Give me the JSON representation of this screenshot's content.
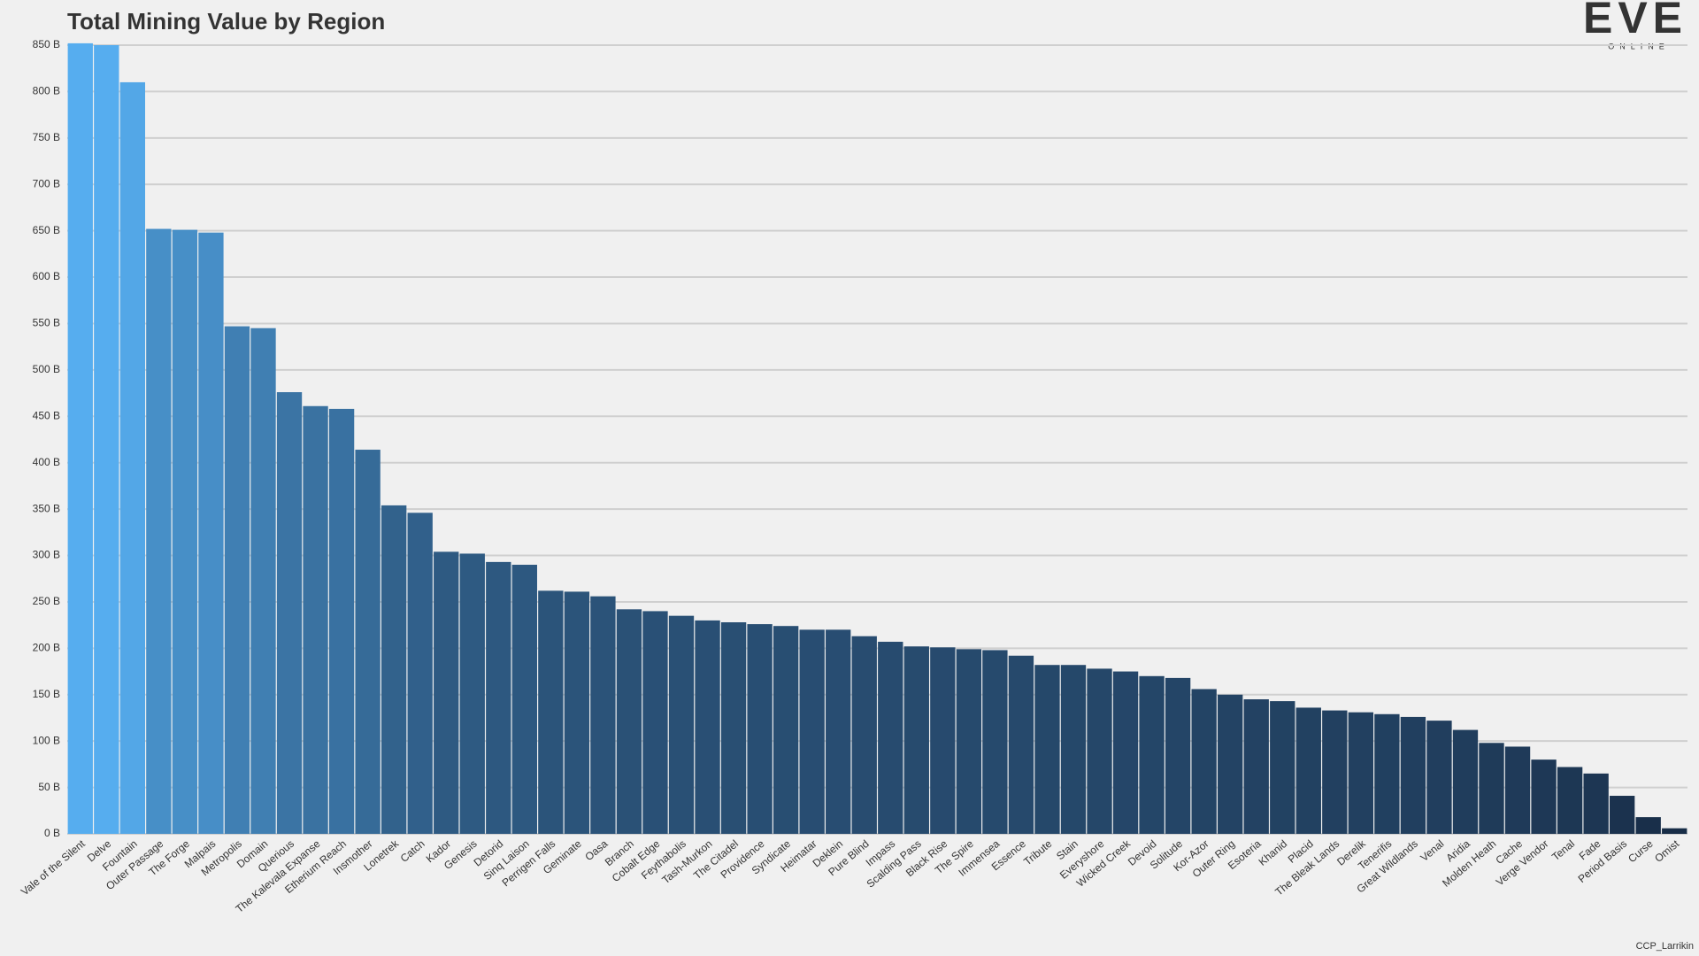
{
  "chart_data": {
    "type": "bar",
    "title": "Total Mining Value by Region",
    "watermark": "EVE",
    "watermark_sub": "ONLINE",
    "credit": "CCP_Larrikin",
    "categories": [
      "Vale of the Silent",
      "Delve",
      "Fountain",
      "Outer Passage",
      "The Forge",
      "Malpais",
      "Metropolis",
      "Domain",
      "Querious",
      "The Kalevala Expanse",
      "Etherium Reach",
      "Insmother",
      "Lonetrek",
      "Catch",
      "Kador",
      "Genesis",
      "Detorid",
      "Sinq Laison",
      "Perrigen Falls",
      "Geminate",
      "Oasa",
      "Branch",
      "Cobalt Edge",
      "Feythabolis",
      "Tash-Murkon",
      "The Citadel",
      "Providence",
      "Syndicate",
      "Heimatar",
      "Deklein",
      "Pure Blind",
      "Impass",
      "Scalding Pass",
      "Black Rise",
      "The Spire",
      "Immensea",
      "Essence",
      "Tribute",
      "Stain",
      "Everyshore",
      "Wicked Creek",
      "Devoid",
      "Solitude",
      "Kor-Azor",
      "Outer Ring",
      "Esoteria",
      "Khanid",
      "Placid",
      "The Bleak Lands",
      "Derelik",
      "Tenerifis",
      "Great Wildlands",
      "Venal",
      "Aridia",
      "Molden Heath",
      "Cache",
      "Verge Vendor",
      "Tenal",
      "Fade",
      "Period Basis",
      "Curse",
      "Omist"
    ],
    "values": [
      852,
      850,
      810,
      652,
      651,
      648,
      547,
      545,
      476,
      461,
      458,
      414,
      354,
      346,
      304,
      302,
      293,
      290,
      262,
      261,
      256,
      242,
      240,
      235,
      230,
      228,
      226,
      224,
      220,
      220,
      213,
      207,
      202,
      201,
      199,
      198,
      192,
      182,
      182,
      178,
      175,
      170,
      168,
      156,
      150,
      145,
      143,
      136,
      133,
      131,
      129,
      126,
      122,
      112,
      98,
      94,
      80,
      72,
      65,
      41,
      18,
      6
    ],
    "color_range": [
      "#182c46",
      "#56adef"
    ],
    "ylim": [
      0,
      850
    ],
    "yticks": [
      {
        "value": 0,
        "label": "0 B"
      },
      {
        "value": 50,
        "label": "50 B"
      },
      {
        "value": 100,
        "label": "100 B"
      },
      {
        "value": 150,
        "label": "150 B"
      },
      {
        "value": 200,
        "label": "200 B"
      },
      {
        "value": 250,
        "label": "250 B"
      },
      {
        "value": 300,
        "label": "300 B"
      },
      {
        "value": 350,
        "label": "350 B"
      },
      {
        "value": 400,
        "label": "400 B"
      },
      {
        "value": 450,
        "label": "450 B"
      },
      {
        "value": 500,
        "label": "500 B"
      },
      {
        "value": 550,
        "label": "550 B"
      },
      {
        "value": 600,
        "label": "600 B"
      },
      {
        "value": 650,
        "label": "650 B"
      },
      {
        "value": 700,
        "label": "700 B"
      },
      {
        "value": 750,
        "label": "750 B"
      },
      {
        "value": 800,
        "label": "800 B"
      },
      {
        "value": 850,
        "label": "850 B"
      }
    ],
    "grid": true
  }
}
